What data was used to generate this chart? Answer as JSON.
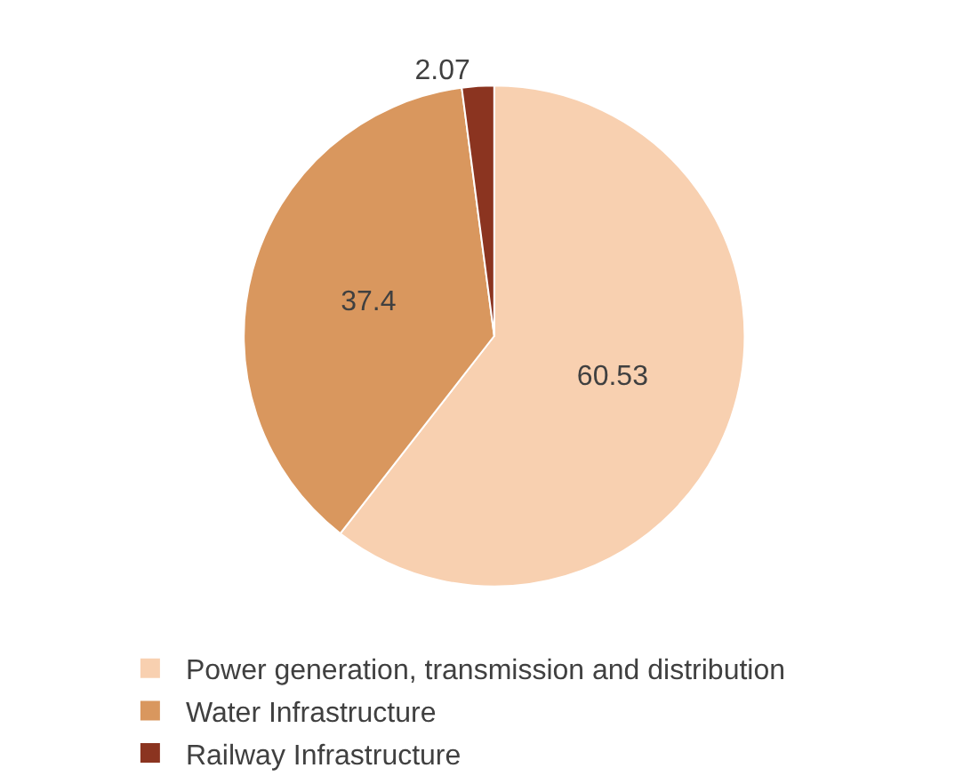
{
  "chart_data": {
    "type": "pie",
    "categories": [
      "Power generation, transmission and distribution",
      "Water Infrastructure",
      "Railway Infrastructure"
    ],
    "values": [
      60.53,
      37.4,
      2.07
    ],
    "colors": [
      "#f8d0b0",
      "#d9975e",
      "#8b3420"
    ],
    "data_labels": true,
    "legend": "bottom"
  }
}
